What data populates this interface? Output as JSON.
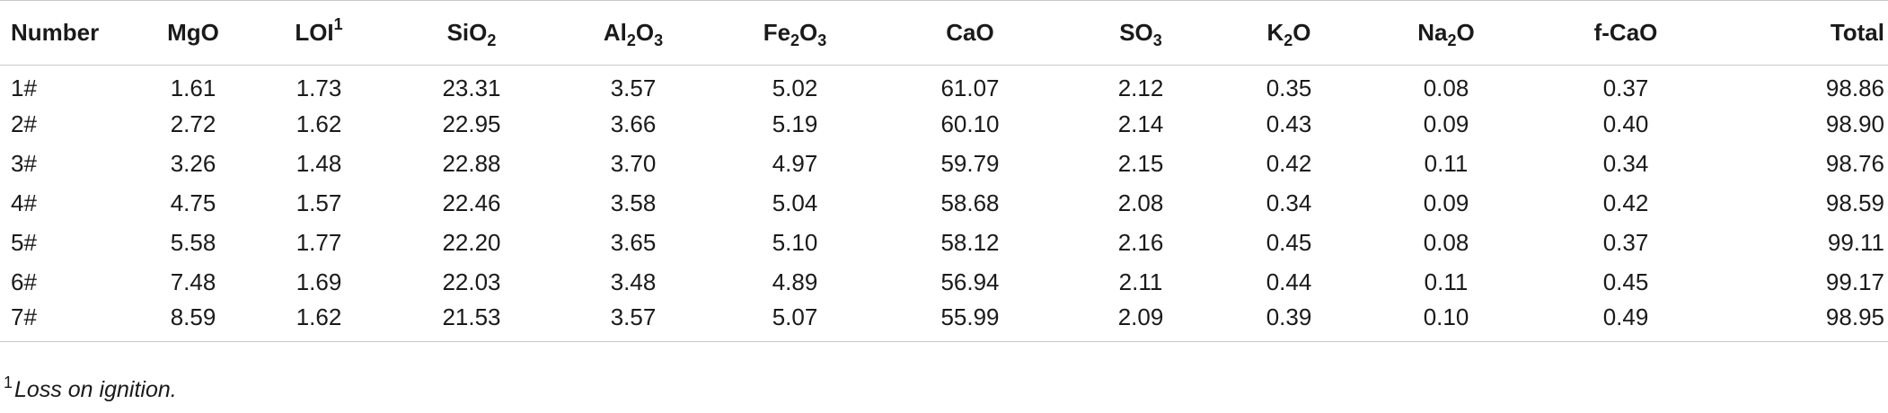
{
  "table": {
    "headers": [
      {
        "key": "number",
        "parts": [
          {
            "t": "Number"
          }
        ]
      },
      {
        "key": "mgo",
        "parts": [
          {
            "t": "MgO"
          }
        ]
      },
      {
        "key": "loi",
        "parts": [
          {
            "t": "LOI"
          },
          {
            "sup": "1"
          }
        ]
      },
      {
        "key": "sio2",
        "parts": [
          {
            "t": "SiO"
          },
          {
            "sub": "2"
          }
        ]
      },
      {
        "key": "al2o3",
        "parts": [
          {
            "t": "Al"
          },
          {
            "sub": "2"
          },
          {
            "t": "O"
          },
          {
            "sub": "3"
          }
        ]
      },
      {
        "key": "fe2o3",
        "parts": [
          {
            "t": "Fe"
          },
          {
            "sub": "2"
          },
          {
            "t": "O"
          },
          {
            "sub": "3"
          }
        ]
      },
      {
        "key": "cao",
        "parts": [
          {
            "t": "CaO"
          }
        ]
      },
      {
        "key": "so3",
        "parts": [
          {
            "t": "SO"
          },
          {
            "sub": "3"
          }
        ]
      },
      {
        "key": "k2o",
        "parts": [
          {
            "t": "K"
          },
          {
            "sub": "2"
          },
          {
            "t": "O"
          }
        ]
      },
      {
        "key": "na2o",
        "parts": [
          {
            "t": "Na"
          },
          {
            "sub": "2"
          },
          {
            "t": "O"
          }
        ]
      },
      {
        "key": "fcao",
        "parts": [
          {
            "t": "f-CaO"
          }
        ]
      },
      {
        "key": "total",
        "parts": [
          {
            "t": "Total"
          }
        ]
      }
    ],
    "rows": [
      [
        "1#",
        "1.61",
        "1.73",
        "23.31",
        "3.57",
        "5.02",
        "61.07",
        "2.12",
        "0.35",
        "0.08",
        "0.37",
        "98.86"
      ],
      [
        "2#",
        "2.72",
        "1.62",
        "22.95",
        "3.66",
        "5.19",
        "60.10",
        "2.14",
        "0.43",
        "0.09",
        "0.40",
        "98.90"
      ],
      [
        "3#",
        "3.26",
        "1.48",
        "22.88",
        "3.70",
        "4.97",
        "59.79",
        "2.15",
        "0.42",
        "0.11",
        "0.34",
        "98.76"
      ],
      [
        "4#",
        "4.75",
        "1.57",
        "22.46",
        "3.58",
        "5.04",
        "58.68",
        "2.08",
        "0.34",
        "0.09",
        "0.42",
        "98.59"
      ],
      [
        "5#",
        "5.58",
        "1.77",
        "22.20",
        "3.65",
        "5.10",
        "58.12",
        "2.16",
        "0.45",
        "0.08",
        "0.37",
        "99.11"
      ],
      [
        "6#",
        "7.48",
        "1.69",
        "22.03",
        "3.48",
        "4.89",
        "56.94",
        "2.11",
        "0.44",
        "0.11",
        "0.45",
        "99.17"
      ],
      [
        "7#",
        "8.59",
        "1.62",
        "21.53",
        "3.57",
        "5.07",
        "55.99",
        "2.09",
        "0.39",
        "0.10",
        "0.49",
        "98.95"
      ]
    ]
  },
  "footnote": {
    "mark": "1",
    "text": "Loss on ignition."
  },
  "colors": {
    "text": "#1a1a1a",
    "rule": "#c8c8c8",
    "background": "#ffffff"
  }
}
